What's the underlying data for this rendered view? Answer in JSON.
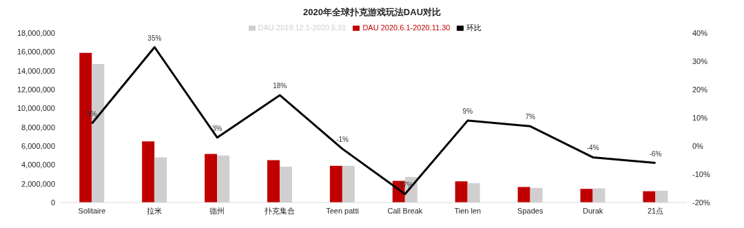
{
  "chart_data": {
    "type": "bar",
    "title": "2020年全球扑克游戏玩法DAU对比",
    "categories": [
      "Solitaire",
      "拉米",
      "德州",
      "扑克集合",
      "Teen patti",
      "Call Break",
      "Tien len",
      "Spades",
      "Durak",
      "21点"
    ],
    "series": [
      {
        "name": "DAU 2020.6.1-2020.11.30",
        "color": "#c00000",
        "values": [
          15900000,
          6500000,
          5150000,
          4500000,
          3900000,
          2300000,
          2250000,
          1650000,
          1450000,
          1200000
        ]
      },
      {
        "name": "DAU 2019.12.1-2020.5.31",
        "color": "#d0cece",
        "values": [
          14700000,
          4800000,
          5000000,
          3800000,
          3900000,
          2700000,
          2050000,
          1550000,
          1500000,
          1250000
        ]
      },
      {
        "name": "环比",
        "type": "line",
        "axis": "y2",
        "color": "#000000",
        "values": [
          8,
          35,
          3,
          18,
          -1,
          -17,
          9,
          7,
          -4,
          -6
        ],
        "value_labels": [
          "8%",
          "35%",
          "3%",
          "18%",
          "-1%",
          "-17%",
          "9%",
          "7%",
          "-4%",
          "-6%"
        ]
      }
    ],
    "ylim": [
      0,
      18000000
    ],
    "yticks": [
      {
        "value": 0,
        "label": "0"
      },
      {
        "value": 2000000,
        "label": "2,000,000"
      },
      {
        "value": 4000000,
        "label": "4,000,000"
      },
      {
        "value": 6000000,
        "label": "6,000,000"
      },
      {
        "value": 8000000,
        "label": "8,000,000"
      },
      {
        "value": 10000000,
        "label": "10,000,000"
      },
      {
        "value": 12000000,
        "label": "12,000,000"
      },
      {
        "value": 14000000,
        "label": "14,000,000"
      },
      {
        "value": 16000000,
        "label": "16,000,000"
      },
      {
        "value": 18000000,
        "label": "18,000,000"
      }
    ],
    "y2lim": [
      -20,
      40
    ],
    "y2ticks": [
      {
        "value": -20,
        "label": "-20%"
      },
      {
        "value": -10,
        "label": "-10%"
      },
      {
        "value": 0,
        "label": "0%"
      },
      {
        "value": 10,
        "label": "10%"
      },
      {
        "value": 20,
        "label": "20%"
      },
      {
        "value": 30,
        "label": "30%"
      },
      {
        "value": 40,
        "label": "40%"
      }
    ],
    "grid": false,
    "legend": "top",
    "marker": "none",
    "line_style": "solid"
  }
}
